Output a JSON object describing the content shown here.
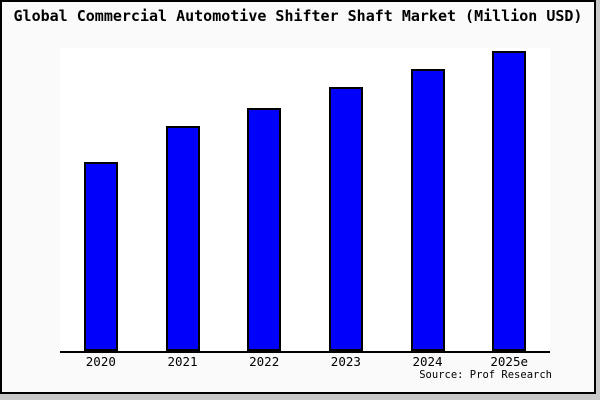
{
  "header": {
    "title": "Global Commercial Automotive Shifter Shaft Market (Million USD)"
  },
  "footer": {
    "source_label": "Source: Prof Research"
  },
  "colors": {
    "bar_fill": "#0000fb",
    "bar_border": "#000000",
    "page_background": "#fafafa",
    "plot_background": "#ffffff",
    "frame_border": "#000000",
    "shadow": "#c9c9c9",
    "text": "#000000"
  },
  "chart_data": {
    "type": "bar",
    "title": "Global Commercial Automotive Shifter Shaft Market (Million USD)",
    "categories": [
      "2020",
      "2021",
      "2022",
      "2023",
      "2024",
      "2025e"
    ],
    "values": [
      63,
      75,
      81,
      88,
      94,
      100
    ],
    "xlabel": "",
    "ylabel": "",
    "ylim": [
      0,
      101
    ],
    "grid": false,
    "legend": false,
    "y_axis_ticks_visible": false,
    "bar_color": "#0000fb"
  }
}
